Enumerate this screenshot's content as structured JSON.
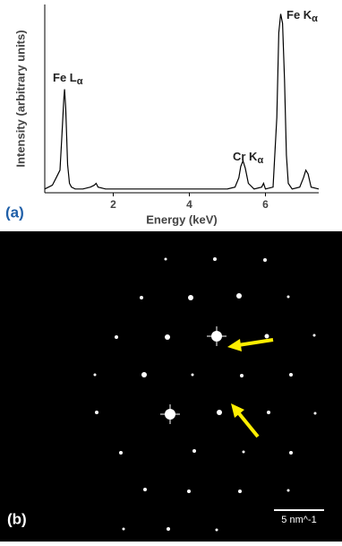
{
  "chart_data": {
    "type": "line",
    "y_label": "Intensity (arbitrary units)",
    "x_label": "Energy (keV)",
    "x": [
      0.2,
      0.4,
      0.5,
      0.6,
      0.65,
      0.7,
      0.72,
      0.75,
      0.8,
      0.85,
      0.9,
      1.0,
      1.2,
      1.4,
      1.5,
      1.55,
      1.6,
      1.8,
      2.0,
      2.5,
      3.0,
      3.5,
      4.0,
      4.5,
      5.0,
      5.2,
      5.3,
      5.35,
      5.41,
      5.47,
      5.55,
      5.7,
      5.9,
      5.95,
      6.0,
      6.2,
      6.3,
      6.35,
      6.4,
      6.45,
      6.5,
      6.55,
      6.6,
      6.7,
      6.9,
      7.0,
      7.06,
      7.12,
      7.2,
      7.4
    ],
    "values": [
      0.02,
      0.04,
      0.08,
      0.12,
      0.3,
      0.5,
      0.55,
      0.45,
      0.15,
      0.05,
      0.03,
      0.02,
      0.02,
      0.03,
      0.04,
      0.05,
      0.03,
      0.02,
      0.02,
      0.02,
      0.02,
      0.02,
      0.02,
      0.02,
      0.02,
      0.03,
      0.08,
      0.14,
      0.17,
      0.13,
      0.05,
      0.02,
      0.03,
      0.05,
      0.02,
      0.03,
      0.4,
      0.85,
      0.95,
      0.9,
      0.6,
      0.2,
      0.05,
      0.02,
      0.03,
      0.08,
      0.12,
      0.1,
      0.03,
      0.02
    ],
    "color": "#000000",
    "xlim": [
      0.2,
      7.4
    ],
    "ylim": [
      0,
      1
    ],
    "xticks": [
      2,
      4,
      6
    ],
    "annotations": [
      {
        "text": "Fe L",
        "sub": "α"
      },
      {
        "text": "Cr K",
        "sub": "α"
      },
      {
        "text": "Fe K",
        "sub": "α"
      }
    ]
  },
  "figure": {
    "panel_a_label": "(a)",
    "panel_b_label": "(b)",
    "scale_bar": "5 nm^-1"
  }
}
